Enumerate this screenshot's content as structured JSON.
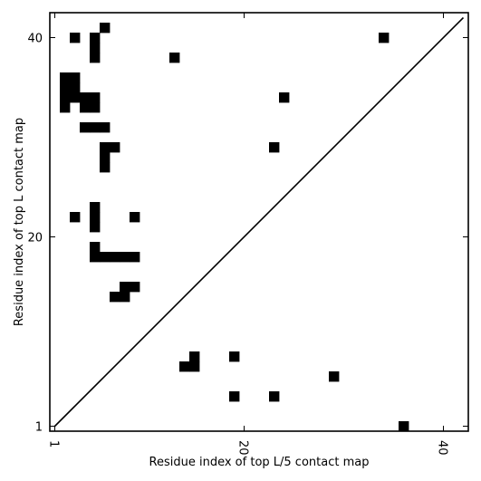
{
  "chart_data": {
    "type": "heatmap",
    "title": "",
    "xlabel": "Residue index of top L/5 contact map",
    "ylabel": "Residue index of top L contact map",
    "xlim": [
      0.5,
      42.5
    ],
    "ylim": [
      0.5,
      42.5
    ],
    "xticks": [
      1,
      20,
      40
    ],
    "yticks": [
      1,
      20,
      40
    ],
    "xtick_rotation": -90,
    "grid": false,
    "legend": "none",
    "cell_color": "#000000",
    "background": "#ffffff",
    "diagonal": {
      "from": [
        1,
        1
      ],
      "to": [
        42,
        42
      ]
    },
    "cells": [
      [
        6,
        41
      ],
      [
        3,
        40
      ],
      [
        5,
        40
      ],
      [
        34,
        40
      ],
      [
        5,
        39
      ],
      [
        13,
        38
      ],
      [
        5,
        38
      ],
      [
        2,
        36
      ],
      [
        3,
        36
      ],
      [
        2,
        35
      ],
      [
        3,
        35
      ],
      [
        2,
        34
      ],
      [
        3,
        34
      ],
      [
        4,
        34
      ],
      [
        5,
        34
      ],
      [
        24,
        34
      ],
      [
        2,
        33
      ],
      [
        4,
        33
      ],
      [
        5,
        33
      ],
      [
        4,
        31
      ],
      [
        5,
        31
      ],
      [
        6,
        31
      ],
      [
        6,
        29
      ],
      [
        7,
        29
      ],
      [
        23,
        29
      ],
      [
        6,
        28
      ],
      [
        6,
        27
      ],
      [
        5,
        23
      ],
      [
        5,
        22
      ],
      [
        3,
        22
      ],
      [
        9,
        22
      ],
      [
        5,
        21
      ],
      [
        5,
        19
      ],
      [
        5,
        18
      ],
      [
        6,
        18
      ],
      [
        7,
        18
      ],
      [
        8,
        18
      ],
      [
        9,
        18
      ],
      [
        8,
        15
      ],
      [
        9,
        15
      ],
      [
        7,
        14
      ],
      [
        8,
        14
      ],
      [
        15,
        8
      ],
      [
        19,
        8
      ],
      [
        14,
        7
      ],
      [
        15,
        7
      ],
      [
        29,
        6
      ],
      [
        19,
        4
      ],
      [
        23,
        4
      ],
      [
        36,
        1
      ]
    ]
  }
}
